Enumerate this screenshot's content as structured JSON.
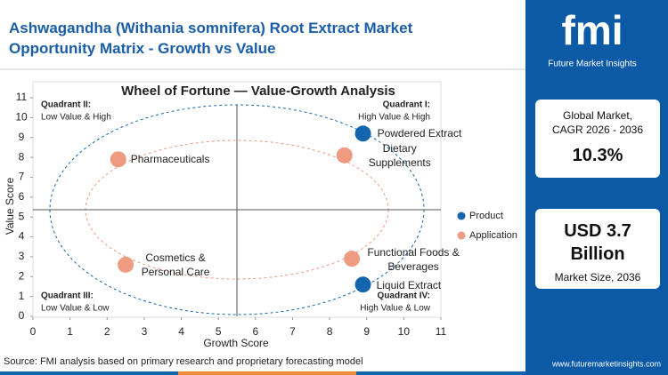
{
  "header": {
    "title": "Ashwagandha (Withania somnifera) Root Extract Market Opportunity Matrix - Growth vs Value"
  },
  "chart_data": {
    "type": "scatter",
    "title": "Wheel of Fortune — Value-Growth Analysis",
    "x_label": "Growth Score",
    "y_label": "Value Score",
    "xlim": [
      0,
      11
    ],
    "ylim": [
      0,
      11
    ],
    "xticks": [
      0,
      1,
      2,
      3,
      4,
      5,
      6,
      7,
      8,
      9,
      10,
      11
    ],
    "yticks": [
      0,
      1,
      2,
      3,
      4,
      5,
      6,
      7,
      8,
      9,
      10,
      11
    ],
    "legend": "right",
    "series": [
      {
        "name": "Product",
        "color": "#1565ad",
        "x": [
          8.9,
          8.9
        ],
        "values": [
          9.2,
          1.6
        ],
        "labels": [
          "Powdered Extract",
          "Liquid Extract"
        ]
      },
      {
        "name": "Application",
        "color": "#ee9b7f",
        "x": [
          8.4,
          2.3,
          2.5,
          8.6
        ],
        "values": [
          8.1,
          7.9,
          2.6,
          2.9
        ],
        "labels": [
          "Dietary Supplements",
          "Pharmaceuticals",
          "Cosmetics & Personal Care",
          "Functional Foods & Beverages"
        ]
      }
    ],
    "quadrants": [
      {
        "title": "Quadrant I:",
        "text": "High Value & High"
      },
      {
        "title": "Quadrant II:",
        "text": "Low Value & High"
      },
      {
        "title": "Quadrant III:",
        "text": "Low Value & Low"
      },
      {
        "title": "Quadrant IV:",
        "text": "High Value & Low"
      }
    ]
  },
  "sidebar": {
    "brand": "fmi",
    "brand_sub": "Future Market Insights",
    "stat1": {
      "label": "Global Market, CAGR 2026 - 2036",
      "value": "10.3%"
    },
    "stat2": {
      "value": "USD 3.7 Billion",
      "label": "Market Size, 2036"
    },
    "website": "www.futuremarketinsights.com"
  },
  "footer": {
    "source": "Source: FMI analysis based on primary research and proprietary forecasting model"
  }
}
